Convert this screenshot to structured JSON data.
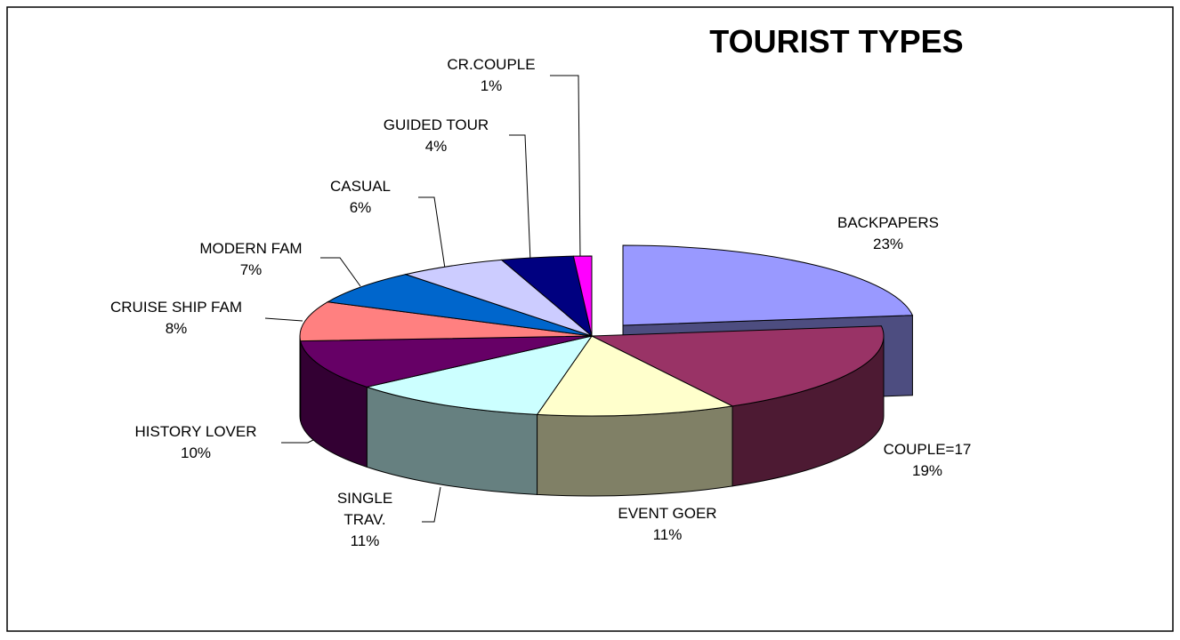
{
  "chart_data": {
    "type": "pie3d",
    "title": "TOURIST TYPES",
    "categories": [
      "BACKPAPERS",
      "COUPLE=17",
      "EVENT GOER",
      "SINGLE TRAV.",
      "HISTORY LOVER",
      "CRUISE SHIP FAM",
      "MODERN FAM",
      "CASUAL",
      "GUIDED TOUR",
      "CR.COUPLE"
    ],
    "values": [
      23,
      19,
      11,
      11,
      10,
      8,
      7,
      6,
      4,
      1
    ],
    "value_labels": [
      "23%",
      "19%",
      "11%",
      "11%",
      "10%",
      "8%",
      "7%",
      "6%",
      "4%",
      "1%"
    ],
    "colors": [
      "#9999ff",
      "#993366",
      "#ffffcc",
      "#ccffff",
      "#660066",
      "#ff8080",
      "#0066cc",
      "#ccccff",
      "#000080",
      "#ff00ff"
    ]
  }
}
